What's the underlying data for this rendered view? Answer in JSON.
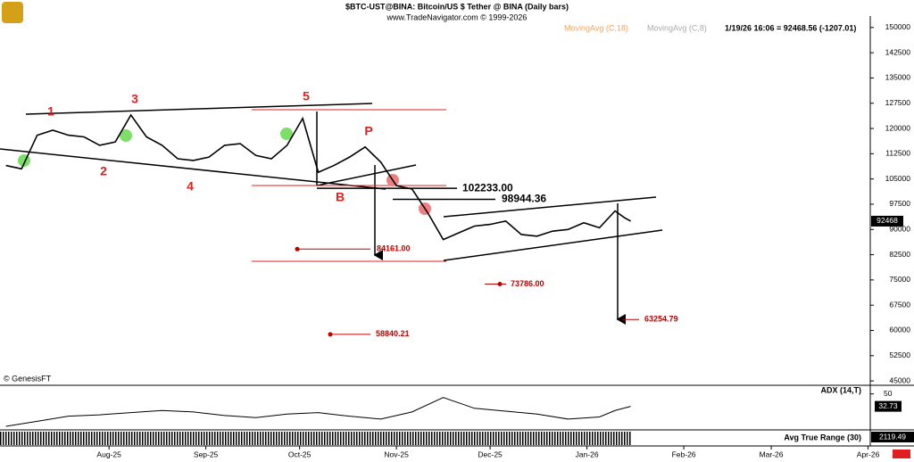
{
  "chart_data": {
    "type": "line",
    "title": "$BTC-UST@BINA:  Bitcoin/US $ Tether @ BINA  (Daily bars)",
    "subtitle": "www.TradeNavigator.com © 1999-2026",
    "legend": [
      "MovingAvg (C,18)",
      "MovingAvg (C,8)"
    ],
    "status": "1/19/26 16:06 = 92468.56 (-1207.01)",
    "credit": "© GenesisFT",
    "x": [
      -33,
      -28,
      -23,
      -18,
      -13,
      -8,
      -3,
      2,
      7,
      12,
      17,
      22,
      27,
      32,
      37,
      42,
      47,
      52,
      57,
      62,
      67,
      72,
      77,
      82,
      87,
      92,
      97,
      102,
      107,
      112,
      117,
      122,
      127,
      132,
      137,
      142,
      147,
      152,
      157,
      162,
      165,
      167
    ],
    "series": [
      {
        "name": "Price",
        "color": "#000000",
        "values": [
          109000,
          108000,
          118000,
          119500,
          118000,
          117500,
          115000,
          116000,
          124000,
          117500,
          115000,
          111000,
          110500,
          111500,
          115000,
          115500,
          112000,
          111000,
          115000,
          123000,
          107000,
          109000,
          111500,
          114500,
          110000,
          103000,
          102000,
          95000,
          87000,
          89000,
          91000,
          91500,
          92500,
          88500,
          88000,
          89500,
          90000,
          92000,
          90500,
          95500,
          93500,
          92468.56
        ]
      }
    ],
    "last_label": "92468",
    "xlim": [
      -34.9,
      243.7
    ],
    "xticks": [
      {
        "value": 0,
        "label": "Aug-25"
      },
      {
        "value": 31,
        "label": "Sep-25"
      },
      {
        "value": 61,
        "label": "Oct-25"
      },
      {
        "value": 92,
        "label": "Nov-25"
      },
      {
        "value": 122,
        "label": "Dec-25"
      },
      {
        "value": 153,
        "label": "Jan-26"
      },
      {
        "value": 184,
        "label": "Feb-26"
      },
      {
        "value": 212,
        "label": "Mar-26"
      },
      {
        "value": 243,
        "label": "Apr-26"
      }
    ],
    "ylim": [
      43700,
      153400
    ],
    "yticks": [
      150000,
      142500,
      135000,
      127500,
      120000,
      112500,
      105000,
      97500,
      90000,
      82500,
      75000,
      67500,
      60000,
      52500,
      45000
    ],
    "levels": [
      {
        "value": 102233,
        "label": "102233.00"
      },
      {
        "value": 98944.36,
        "label": "98944.36"
      },
      {
        "value": 84161,
        "label": "84161.00"
      },
      {
        "value": 73786,
        "label": "73786.00"
      },
      {
        "value": 63254.79,
        "label": "63254.79"
      },
      {
        "value": 58840.21,
        "label": "58840.21"
      }
    ],
    "waves": [
      "1",
      "2",
      "3",
      "4",
      "5",
      "P",
      "B"
    ],
    "adx": {
      "title": "ADX (14,T)",
      "x": [
        -33,
        -23,
        -13,
        -3,
        7,
        17,
        27,
        37,
        47,
        57,
        67,
        77,
        87,
        97,
        107,
        117,
        127,
        137,
        147,
        157,
        162,
        167
      ],
      "values": [
        5,
        12,
        19,
        21,
        24,
        27,
        25,
        20,
        17,
        22,
        24,
        19,
        15,
        25,
        45,
        30,
        26,
        22,
        15,
        18,
        27,
        32.73
      ],
      "ylim": [
        0,
        62
      ],
      "yticks": [
        50
      ],
      "last_label": "32.73"
    },
    "atr": {
      "title": "Avg True Range (30)",
      "last_label": "2119.49"
    }
  }
}
